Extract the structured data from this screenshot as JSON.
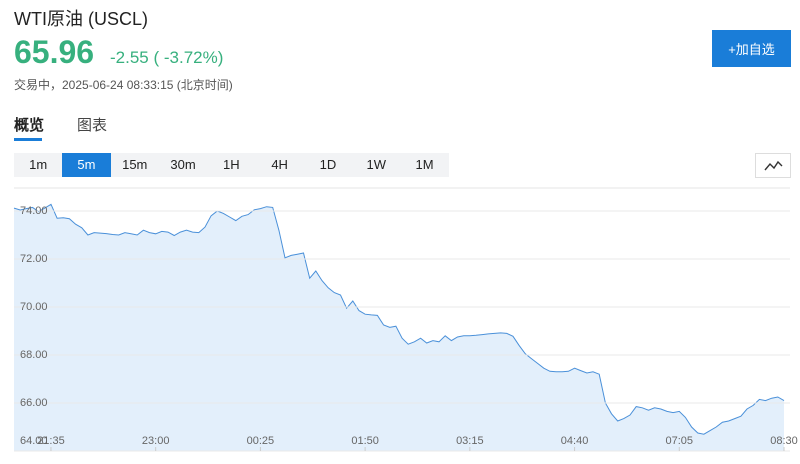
{
  "header": {
    "title": "WTI原油 (USCL)",
    "price": "65.96",
    "change": "-2.55",
    "change_pct": "( -3.72%)",
    "status": "交易中，2025-06-24 08:33:15 (北京时间)",
    "watch_button": "+加自选"
  },
  "tabs": [
    "概览",
    "图表"
  ],
  "intervals": [
    "1m",
    "5m",
    "15m",
    "30m",
    "1H",
    "4H",
    "1D",
    "1W",
    "1M"
  ],
  "chart_data": {
    "type": "area",
    "color": "#4a90d9",
    "fill": "#e3effb",
    "grid": true,
    "values": [
      74.12,
      74.04,
      74.1,
      74.15,
      73.98,
      74.12,
      74.28,
      73.7,
      73.72,
      73.68,
      73.45,
      73.3,
      73.0,
      73.1,
      73.08,
      73.06,
      73.02,
      73.0,
      73.1,
      73.05,
      73.0,
      73.2,
      73.1,
      73.05,
      73.15,
      73.12,
      72.98,
      73.12,
      73.2,
      73.12,
      73.1,
      73.33,
      73.8,
      74.0,
      73.9,
      73.75,
      73.6,
      73.78,
      73.85,
      74.05,
      74.1,
      74.18,
      74.15,
      73.2,
      72.05,
      72.15,
      72.2,
      72.25,
      71.2,
      71.5,
      71.1,
      70.8,
      70.6,
      70.5,
      69.95,
      70.25,
      69.85,
      69.7,
      69.67,
      69.65,
      69.25,
      69.15,
      69.2,
      68.7,
      68.45,
      68.55,
      68.7,
      68.5,
      68.6,
      68.55,
      68.8,
      68.6,
      68.75,
      68.8,
      68.8,
      68.82,
      68.85,
      68.88,
      68.9,
      68.92,
      68.9,
      68.78,
      68.4,
      68.05,
      67.85,
      67.65,
      67.45,
      67.32,
      67.3,
      67.3,
      67.32,
      67.45,
      67.35,
      67.25,
      67.3,
      67.2,
      66.0,
      65.55,
      65.25,
      65.35,
      65.5,
      65.85,
      65.8,
      65.7,
      65.8,
      65.75,
      65.65,
      65.6,
      65.65,
      65.4,
      65.0,
      64.75,
      64.7,
      64.85,
      65.0,
      65.2,
      65.25,
      65.35,
      65.45,
      65.75,
      65.9,
      66.15,
      66.1,
      66.2,
      66.25,
      66.1
    ],
    "xlim": [
      0,
      125
    ],
    "xticks": [
      {
        "value": 6,
        "label": "21:35"
      },
      {
        "value": 23,
        "label": "23:00"
      },
      {
        "value": 40,
        "label": "00:25"
      },
      {
        "value": 57,
        "label": "01:50"
      },
      {
        "value": 74,
        "label": "03:15"
      },
      {
        "value": 91,
        "label": "04:40"
      },
      {
        "value": 108,
        "label": "07:05"
      },
      {
        "value": 125,
        "label": "08:30"
      }
    ],
    "ylim": [
      64,
      75
    ],
    "yticks": [
      {
        "value": 64,
        "label": "64.00"
      },
      {
        "value": 66,
        "label": "66.00"
      },
      {
        "value": 68,
        "label": "68.00"
      },
      {
        "value": 70,
        "label": "70.00"
      },
      {
        "value": 72,
        "label": "72.00"
      },
      {
        "value": 74,
        "label": "74.00"
      }
    ]
  }
}
